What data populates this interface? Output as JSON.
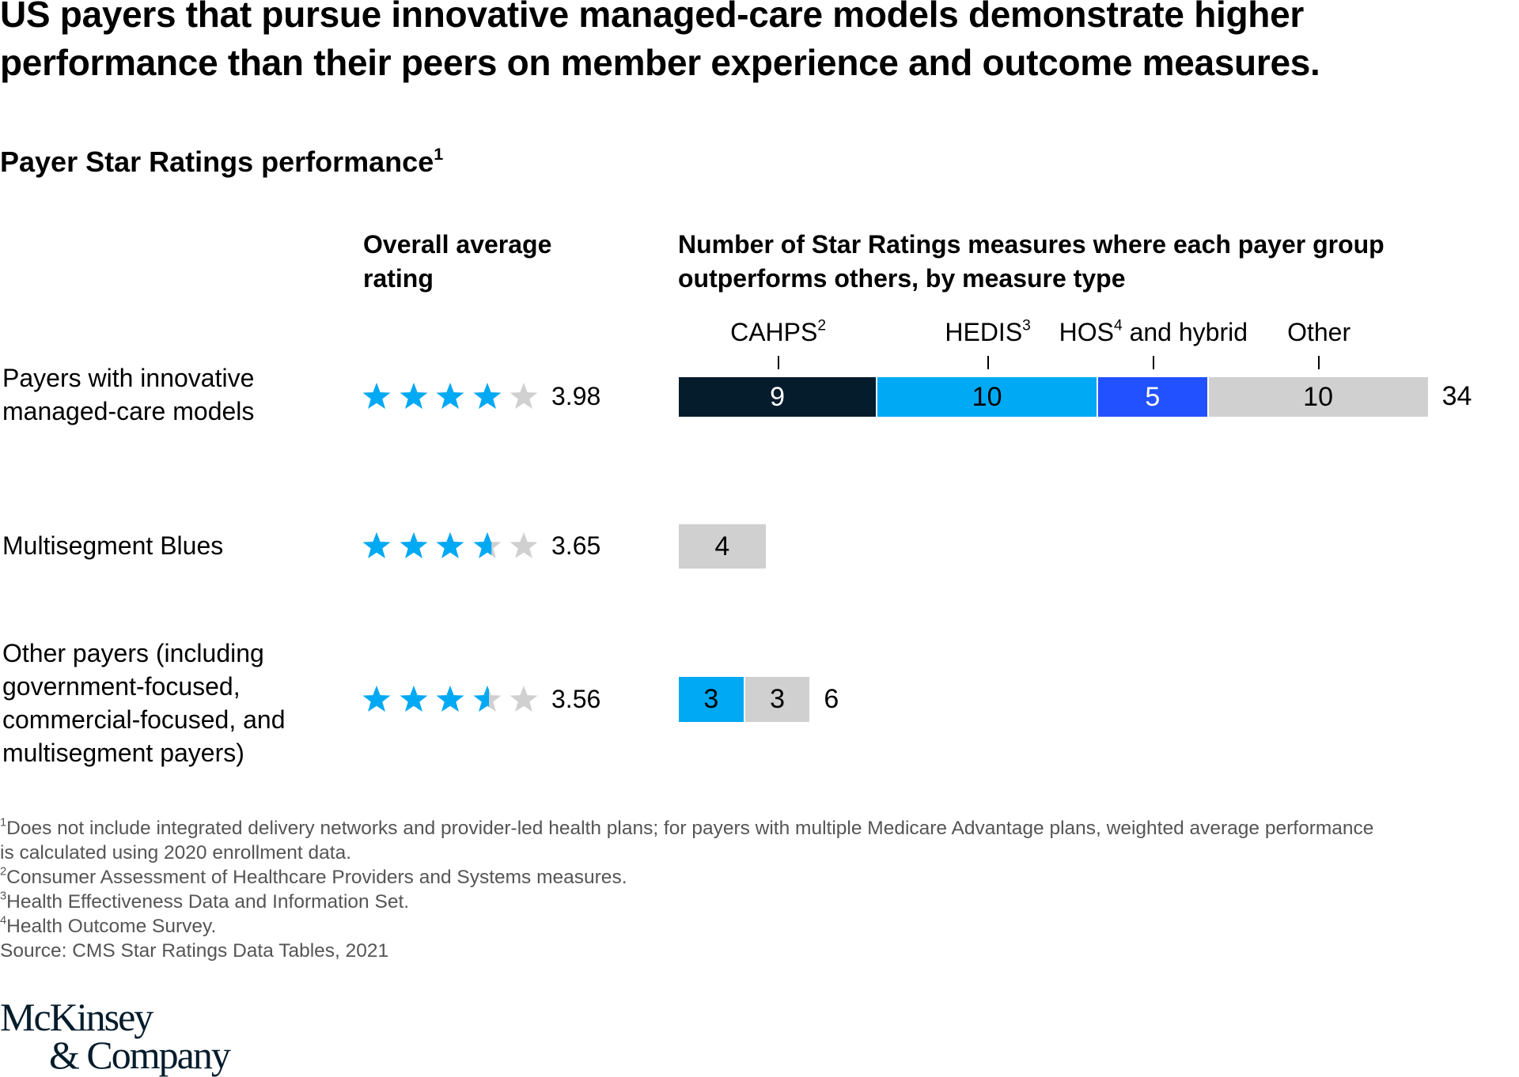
{
  "title": "US payers that pursue innovative managed-care models demonstrate higher performance than their peers on member experience and outcome measures.",
  "subtitle": {
    "text": "Payer Star Ratings performance",
    "sup": "1"
  },
  "logo": {
    "line1": "McKinsey",
    "line2": "& Company"
  },
  "chart_data": {
    "type": "bar",
    "orientation": "horizontal-stacked",
    "column_headers": {
      "rating": "Overall average rating",
      "measures": "Number of Star Ratings measures where each payer group outperforms others, by measure type"
    },
    "max_stars": 5,
    "segments": [
      {
        "name": "CAHPS",
        "sup": "2",
        "color": "#051c2c",
        "text_color": "#ffffff"
      },
      {
        "name": "HEDIS",
        "sup": "3",
        "color": "#00a9f4",
        "text_color": "#000000"
      },
      {
        "name": "HOS",
        "sup": "4",
        "name_suffix": " and hybrid",
        "color": "#2251ff",
        "text_color": "#ffffff"
      },
      {
        "name": "Other",
        "sup": "",
        "color": "#d0d0d0",
        "text_color": "#000000"
      }
    ],
    "star_color": "#00a9f4",
    "star_empty_color": "#d0d0d0",
    "rows": [
      {
        "label": "Payers with innovative managed-care models",
        "rating": 3.98,
        "rating_label": "3.98",
        "values": [
          9,
          10,
          5,
          10
        ],
        "total": "34"
      },
      {
        "label": "Multisegment Blues",
        "rating": 3.65,
        "rating_label": "3.65",
        "values": [
          0,
          0,
          0,
          4
        ],
        "total": ""
      },
      {
        "label": "Other payers (including government-focused, commercial-focused, and multisegment payers)",
        "rating": 3.56,
        "rating_label": "3.56",
        "values": [
          0,
          3,
          0,
          3
        ],
        "total": "6"
      }
    ]
  },
  "footnotes": [
    {
      "sup": "1",
      "text": "Does not include integrated delivery networks and provider-led health plans; for payers with multiple Medicare Advantage plans, weighted average performance"
    },
    {
      "sup": "",
      "text": " is calculated using 2020 enrollment data."
    },
    {
      "sup": "2",
      "text": "Consumer Assessment of Healthcare Providers and Systems measures."
    },
    {
      "sup": "3",
      "text": "Health Effectiveness Data and Information Set."
    },
    {
      "sup": "4",
      "text": "Health Outcome Survey."
    },
    {
      "sup": "",
      "text": " Source: CMS Star Ratings Data Tables, 2021"
    }
  ]
}
